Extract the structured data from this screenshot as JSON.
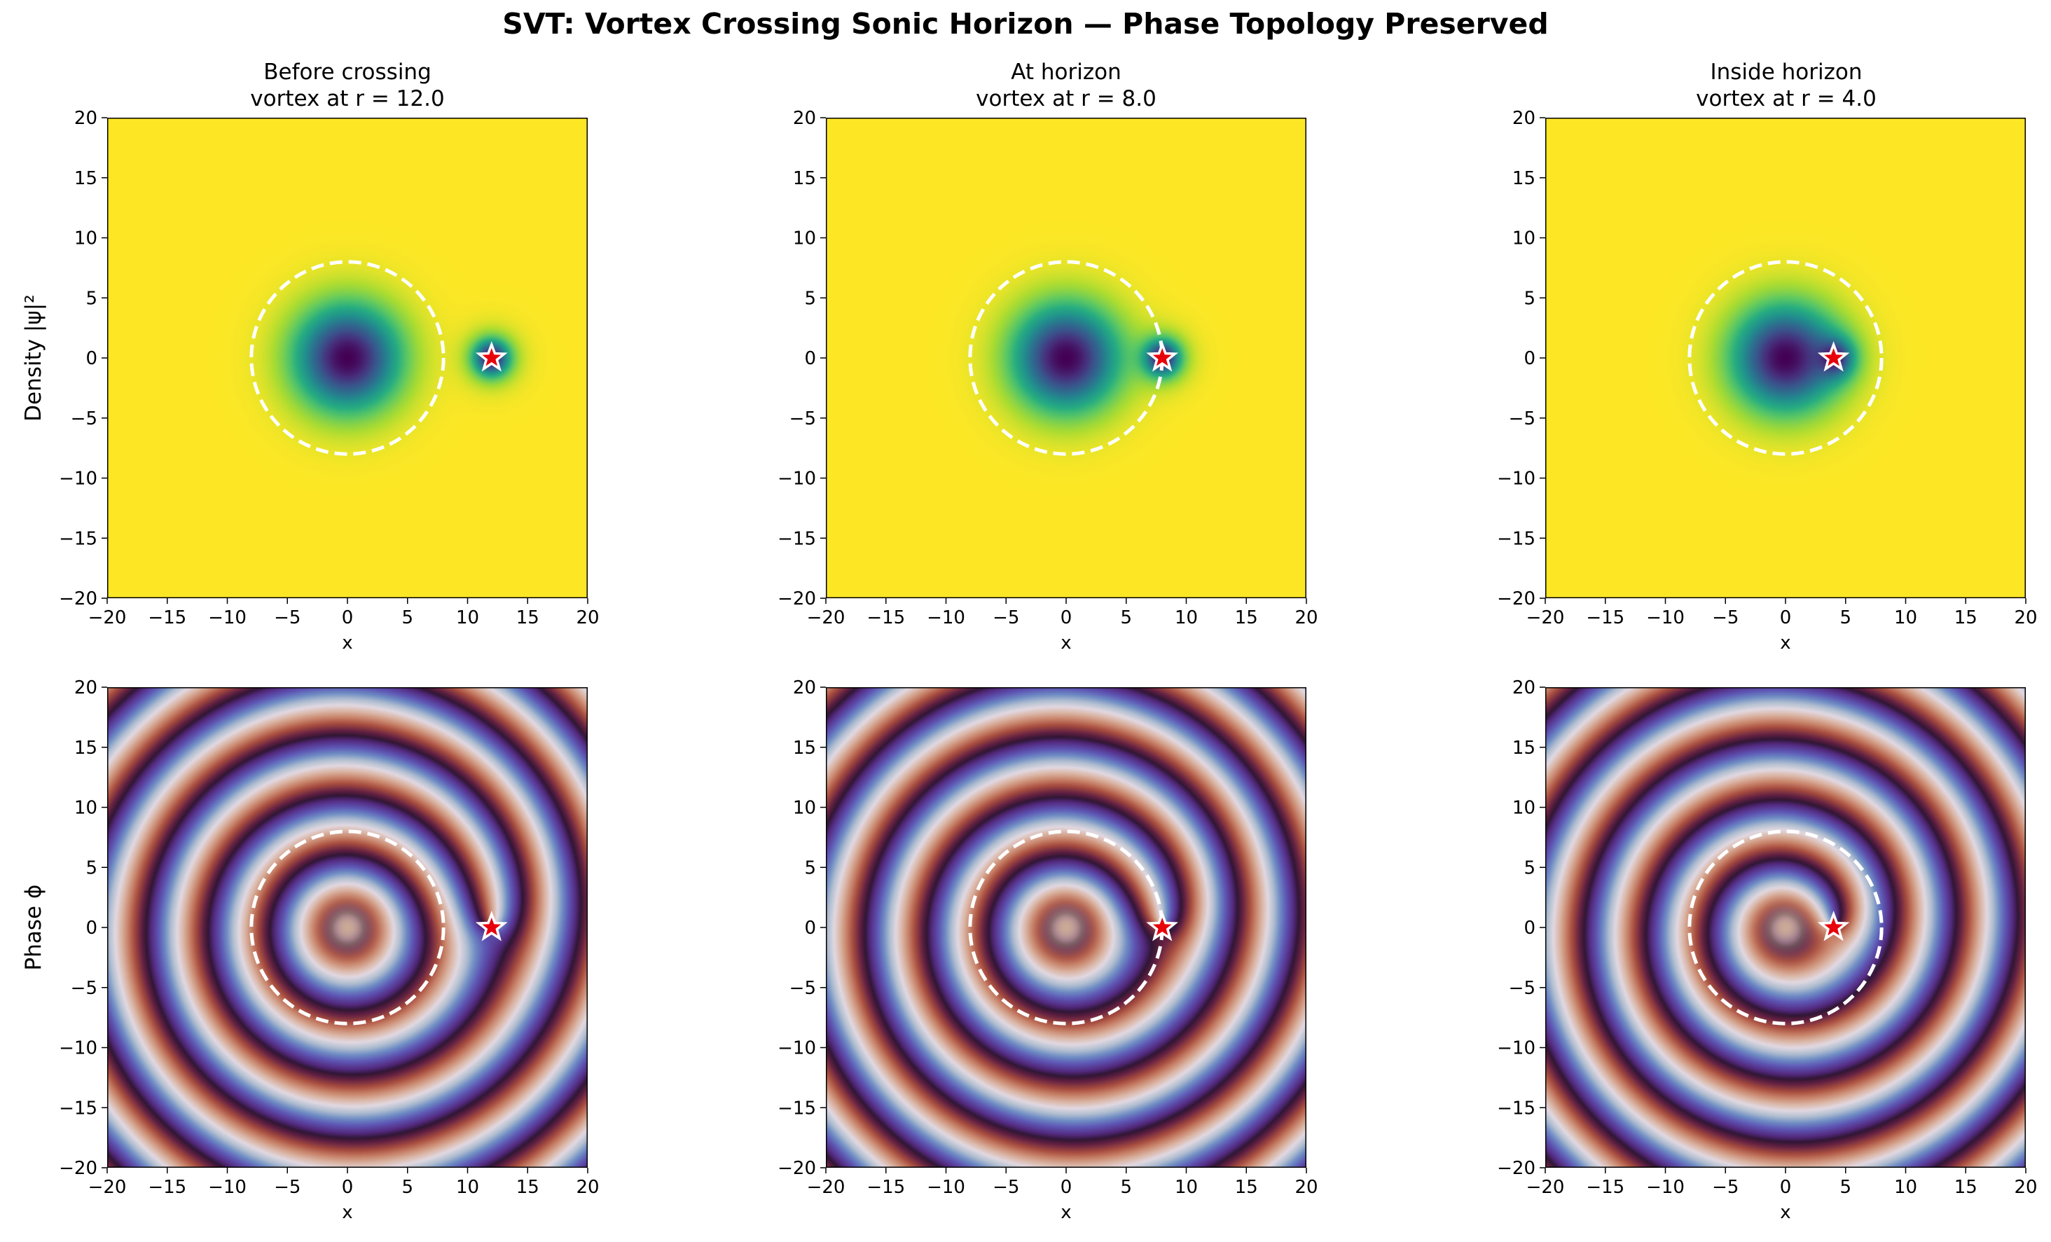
{
  "suptitle": "SVT: Vortex Crossing Sonic Horizon — Phase Topology Preserved",
  "row_labels": {
    "density": "Density  |ψ|²",
    "phase": "Phase  ϕ"
  },
  "panels": [
    {
      "title_line1": "Before crossing",
      "title_line2": "vortex at r = 12.0",
      "vortex_r": 12.0
    },
    {
      "title_line1": "At horizon",
      "title_line2": "vortex at r = 8.0",
      "vortex_r": 8.0
    },
    {
      "title_line1": "Inside horizon",
      "title_line2": "vortex at r = 4.0",
      "vortex_r": 4.0
    }
  ],
  "chart_data": [
    {
      "type": "heatmap",
      "panel": "density-before",
      "quantity": "density",
      "title": "Before crossing\nvortex at r = 12.0",
      "xlabel": "x",
      "ylabel": "Density |ψ|²",
      "xlim": [
        -20,
        20
      ],
      "ylim": [
        -20,
        20
      ],
      "xticks": [
        -20,
        -15,
        -10,
        -5,
        0,
        5,
        10,
        15,
        20
      ],
      "yticks": [
        -20,
        -15,
        -10,
        -5,
        0,
        5,
        10,
        15,
        20
      ],
      "colormap": "viridis",
      "horizon_radius": 8.0,
      "vortex_position": [
        12.0,
        0.0
      ]
    },
    {
      "type": "heatmap",
      "panel": "density-at",
      "quantity": "density",
      "title": "At horizon\nvortex at r = 8.0",
      "xlabel": "x",
      "ylabel": "",
      "xlim": [
        -20,
        20
      ],
      "ylim": [
        -20,
        20
      ],
      "xticks": [
        -20,
        -15,
        -10,
        -5,
        0,
        5,
        10,
        15,
        20
      ],
      "yticks": [
        -20,
        -15,
        -10,
        -5,
        0,
        5,
        10,
        15,
        20
      ],
      "colormap": "viridis",
      "horizon_radius": 8.0,
      "vortex_position": [
        8.0,
        0.0
      ]
    },
    {
      "type": "heatmap",
      "panel": "density-inside",
      "quantity": "density",
      "title": "Inside horizon\nvortex at r = 4.0",
      "xlabel": "x",
      "ylabel": "",
      "xlim": [
        -20,
        20
      ],
      "ylim": [
        -20,
        20
      ],
      "xticks": [
        -20,
        -15,
        -10,
        -5,
        0,
        5,
        10,
        15,
        20
      ],
      "yticks": [
        -20,
        -15,
        -10,
        -5,
        0,
        5,
        10,
        15,
        20
      ],
      "colormap": "viridis",
      "horizon_radius": 8.0,
      "vortex_position": [
        4.0,
        0.0
      ]
    },
    {
      "type": "heatmap",
      "panel": "phase-before",
      "quantity": "phase",
      "title": "",
      "xlabel": "x",
      "ylabel": "Phase ϕ",
      "xlim": [
        -20,
        20
      ],
      "ylim": [
        -20,
        20
      ],
      "xticks": [
        -20,
        -15,
        -10,
        -5,
        0,
        5,
        10,
        15,
        20
      ],
      "yticks": [
        -20,
        -15,
        -10,
        -5,
        0,
        5,
        10,
        15,
        20
      ],
      "colormap": "twilight",
      "horizon_radius": 8.0,
      "vortex_position": [
        12.0,
        0.0
      ]
    },
    {
      "type": "heatmap",
      "panel": "phase-at",
      "quantity": "phase",
      "title": "",
      "xlabel": "x",
      "ylabel": "",
      "xlim": [
        -20,
        20
      ],
      "ylim": [
        -20,
        20
      ],
      "xticks": [
        -20,
        -15,
        -10,
        -5,
        0,
        5,
        10,
        15,
        20
      ],
      "yticks": [
        -20,
        -15,
        -10,
        -5,
        0,
        5,
        10,
        15,
        20
      ],
      "colormap": "twilight",
      "horizon_radius": 8.0,
      "vortex_position": [
        8.0,
        0.0
      ]
    },
    {
      "type": "heatmap",
      "panel": "phase-inside",
      "quantity": "phase",
      "title": "",
      "xlabel": "x",
      "ylabel": "",
      "xlim": [
        -20,
        20
      ],
      "ylim": [
        -20,
        20
      ],
      "xticks": [
        -20,
        -15,
        -10,
        -5,
        0,
        5,
        10,
        15,
        20
      ],
      "yticks": [
        -20,
        -15,
        -10,
        -5,
        0,
        5,
        10,
        15,
        20
      ],
      "colormap": "twilight",
      "horizon_radius": 8.0,
      "vortex_position": [
        4.0,
        0.0
      ]
    }
  ],
  "colors": {
    "horizon_circle": "#ffffff",
    "vortex_marker_fill": "#e8000b",
    "vortex_marker_edge": "#ffffff",
    "axes_frame": "#000000"
  }
}
